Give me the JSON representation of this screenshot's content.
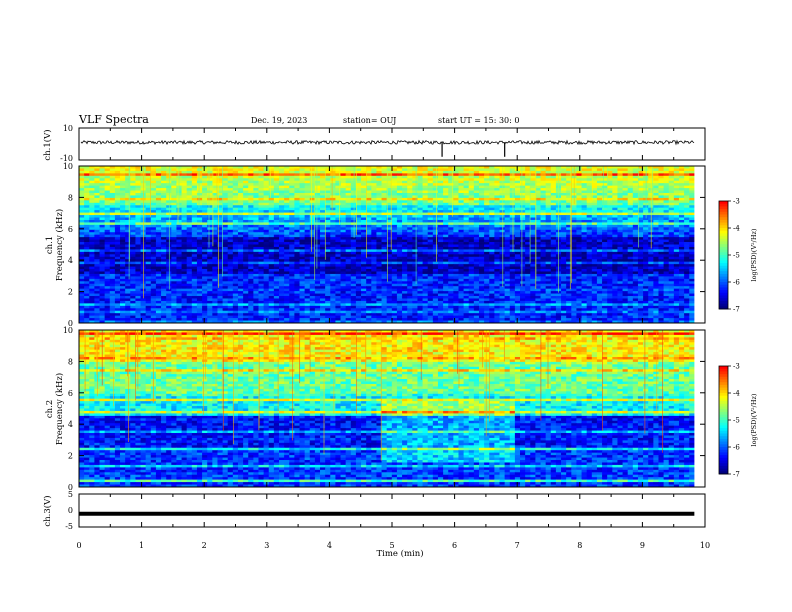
{
  "header": {
    "title": "VLF Spectra",
    "date": "Dec. 19, 2023",
    "station": "station= OUJ",
    "start": "start  UT =   15: 30: 0"
  },
  "colors": {
    "colormap": [
      "#00007f",
      "#0000ff",
      "#0080ff",
      "#00ffff",
      "#80ff80",
      "#ffff00",
      "#ff8000",
      "#ff0000",
      "#ffffff"
    ],
    "waveform": "#000000"
  },
  "chart_data": [
    {
      "type": "line",
      "panel": "ch1-waveform",
      "ylabel": "ch.1(V)",
      "ylim": [
        -10,
        10
      ],
      "yticks": [
        "10",
        "-10"
      ],
      "description_value": "waveform near 0 V with occasional spikes",
      "trace_level": 1,
      "spikes_at_min": [
        5.8,
        6.8
      ]
    },
    {
      "type": "heatmap",
      "panel": "ch1-spectrogram",
      "ylabel": "ch.1\nFrequency (kHz)",
      "ylabel_line1": "ch.1",
      "ylabel_line2": "Frequency (kHz)",
      "xlim": [
        0,
        10
      ],
      "ylim": [
        0,
        10
      ],
      "yticks": [
        "0",
        "2",
        "4",
        "6",
        "8",
        "10"
      ],
      "colorbar": {
        "label": "log(PSD)(V²/Hz)",
        "range": [
          -7,
          -3
        ],
        "ticks": [
          "-3",
          "-4",
          "-5",
          "-6",
          "-7"
        ]
      },
      "data_end_min": 9.83
    },
    {
      "type": "heatmap",
      "panel": "ch2-spectrogram",
      "ylabel_line1": "ch.2",
      "ylabel_line2": "Frequency (kHz)",
      "xlim": [
        0,
        10
      ],
      "ylim": [
        0,
        10
      ],
      "yticks": [
        "0",
        "2",
        "4",
        "6",
        "8",
        "10"
      ],
      "colorbar": {
        "label": "log(PSD)(V²/Hz)",
        "range": [
          -7,
          -3
        ],
        "ticks": [
          "-3",
          "-4",
          "-5",
          "-6",
          "-7"
        ]
      },
      "data_end_min": 9.83
    },
    {
      "type": "line",
      "panel": "ch3-waveform",
      "ylabel": "ch.3(V)",
      "ylim": [
        -5,
        5
      ],
      "yticks": [
        "5",
        "0",
        "-5"
      ],
      "trace_level": -1
    }
  ],
  "xaxis": {
    "label": "Time  (min)",
    "ticks": [
      "0",
      "1",
      "2",
      "3",
      "4",
      "5",
      "6",
      "7",
      "8",
      "9",
      "10"
    ],
    "range": [
      0,
      10
    ]
  }
}
